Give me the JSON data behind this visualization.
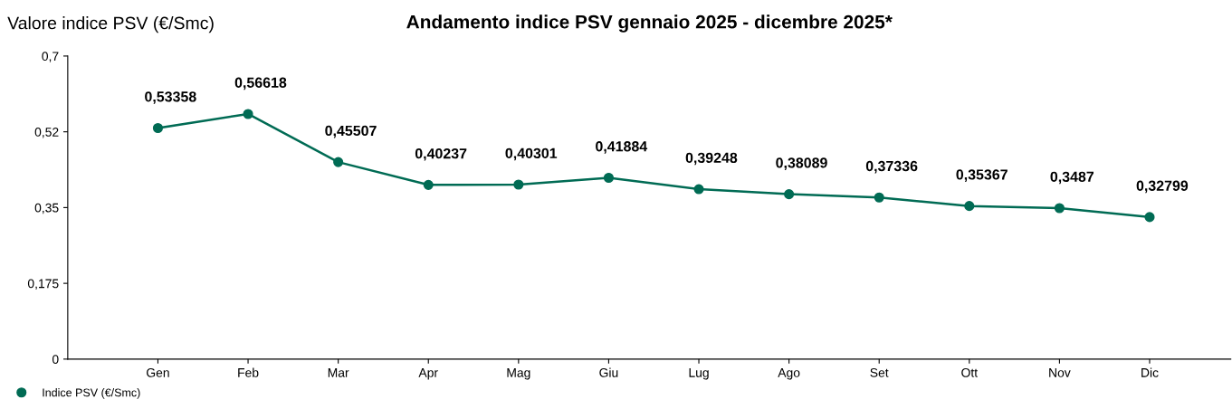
{
  "chart_data": {
    "type": "line",
    "title": "Andamento indice PSV gennaio 2025 - dicembre 2025*",
    "ylabel": "Valore indice PSV (€/Smc)",
    "categories": [
      "Gen",
      "Feb",
      "Mar",
      "Apr",
      "Mag",
      "Giu",
      "Lug",
      "Ago",
      "Set",
      "Ott",
      "Nov",
      "Dic"
    ],
    "series": [
      {
        "name": "Indice PSV (€/Smc)",
        "color": "#006b54",
        "values": [
          0.53358,
          0.56618,
          0.45507,
          0.40237,
          0.40301,
          0.41884,
          0.39248,
          0.38089,
          0.37336,
          0.35367,
          0.3487,
          0.32799
        ],
        "value_labels": [
          "0,53358",
          "0,56618",
          "0,45507",
          "0,40237",
          "0,40301",
          "0,41884",
          "0,39248",
          "0,38089",
          "0,37336",
          "0,35367",
          "0,3487",
          "0,32799"
        ]
      }
    ],
    "ylim": [
      0,
      0.7
    ],
    "yticks": [
      {
        "value": 0,
        "label": "0"
      },
      {
        "value": 0.175,
        "label": "0,175"
      },
      {
        "value": 0.35,
        "label": "0,35"
      },
      {
        "value": 0.525,
        "label": "0,52"
      },
      {
        "value": 0.7,
        "label": "0,7"
      }
    ],
    "grid": false,
    "legend": "bottom left",
    "marker": "circle",
    "line_style": "solid"
  }
}
